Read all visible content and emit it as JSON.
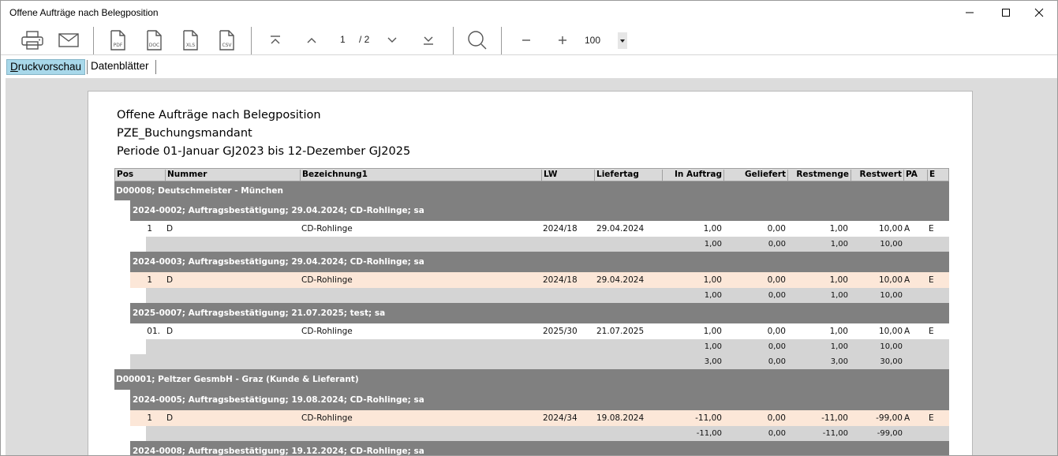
{
  "window": {
    "title": "Offene Aufträge nach Belegposition"
  },
  "toolbar": {
    "pdf_label": "PDF",
    "doc_label": "DOC",
    "xls_label": "XLS",
    "csv_label": "CSV",
    "current_page": "1",
    "total_pages": "/ 2",
    "zoom": "100"
  },
  "tabs": [
    {
      "label": "Druckvorschau"
    },
    {
      "label": "Datenblätter"
    }
  ],
  "report": {
    "title": "Offene Aufträge nach Belegposition",
    "subtitle": "PZE_Buchungsmandant",
    "period": "Periode 01-Januar GJ2023 bis 12-Dezember GJ2025",
    "columns": {
      "pos": "Pos",
      "nummer": "Nummer",
      "bezeichnung": "Bezeichnung1",
      "lw": "LW",
      "liefertag": "Liefertag",
      "in_auftrag": "In Auftrag",
      "geliefert": "Geliefert",
      "restmenge": "Restmenge",
      "restwert": "Restwert",
      "pa": "PA",
      "e": "E"
    },
    "customers": [
      {
        "name": "D00008; Deutschmeister - München",
        "orders": [
          {
            "header": "2024-0002; Auftragsbestätigung; 29.04.2024; CD-Rohlinge; sa",
            "line": {
              "pos": "1",
              "nummer": "D",
              "bezeichnung": "CD-Rohlinge",
              "lw": "2024/18",
              "liefertag": "29.04.2024",
              "in_auftrag": "1,00",
              "geliefert": "0,00",
              "restmenge": "1,00",
              "restwert": "10,00",
              "pa": "A",
              "e": "E"
            },
            "sum": {
              "in_auftrag": "1,00",
              "geliefert": "0,00",
              "restmenge": "1,00",
              "restwert": "10,00"
            }
          },
          {
            "header": "2024-0003; Auftragsbestätigung; 29.04.2024; CD-Rohlinge; sa",
            "line": {
              "pos": "1",
              "nummer": "D",
              "bezeichnung": "CD-Rohlinge",
              "lw": "2024/18",
              "liefertag": "29.04.2024",
              "in_auftrag": "1,00",
              "geliefert": "0,00",
              "restmenge": "1,00",
              "restwert": "10,00",
              "pa": "A",
              "e": "E"
            },
            "sum": {
              "in_auftrag": "1,00",
              "geliefert": "0,00",
              "restmenge": "1,00",
              "restwert": "10,00"
            }
          },
          {
            "header": "2025-0007; Auftragsbestätigung; 21.07.2025; test; sa",
            "line": {
              "pos": "01.",
              "nummer": "D",
              "bezeichnung": "CD-Rohlinge",
              "lw": "2025/30",
              "liefertag": "21.07.2025",
              "in_auftrag": "1,00",
              "geliefert": "0,00",
              "restmenge": "1,00",
              "restwert": "10,00",
              "pa": "A",
              "e": "E"
            },
            "sum": {
              "in_auftrag": "1,00",
              "geliefert": "0,00",
              "restmenge": "1,00",
              "restwert": "10,00"
            }
          }
        ],
        "total": {
          "in_auftrag": "3,00",
          "geliefert": "0,00",
          "restmenge": "3,00",
          "restwert": "30,00"
        }
      },
      {
        "name": "D00001; Peltzer GesmbH - Graz (Kunde & Lieferant)",
        "orders": [
          {
            "header": "2024-0005; Auftragsbestätigung; 19.08.2024; CD-Rohlinge; sa",
            "line": {
              "pos": "1",
              "nummer": "D",
              "bezeichnung": "CD-Rohlinge",
              "lw": "2024/34",
              "liefertag": "19.08.2024",
              "in_auftrag": "-11,00",
              "geliefert": "0,00",
              "restmenge": "-11,00",
              "restwert": "-99,00",
              "pa": "A",
              "e": "E"
            },
            "sum": {
              "in_auftrag": "-11,00",
              "geliefert": "0,00",
              "restmenge": "-11,00",
              "restwert": "-99,00"
            }
          },
          {
            "header": "2024-0008; Auftragsbestätigung; 19.12.2024; CD-Rohlinge; sa"
          }
        ]
      }
    ]
  }
}
